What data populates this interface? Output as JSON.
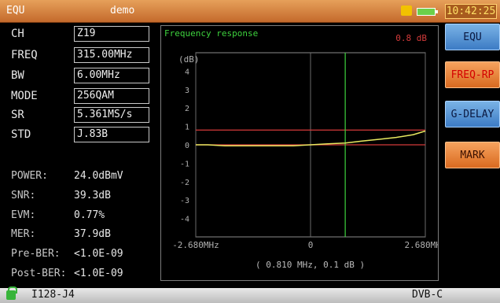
{
  "titlebar": {
    "mode": "EQU",
    "project": "demo",
    "time": "10:42:25",
    "icons": [
      "warning-icon",
      "battery-icon"
    ]
  },
  "params": [
    {
      "label": "CH",
      "value": "Z19"
    },
    {
      "label": "FREQ",
      "value": "315.00MHz"
    },
    {
      "label": "BW",
      "value": "6.00MHz"
    },
    {
      "label": "MODE",
      "value": "256QAM"
    },
    {
      "label": "SR",
      "value": "5.361MS/s"
    },
    {
      "label": "STD",
      "value": "J.83B"
    }
  ],
  "stats": [
    {
      "label": "POWER:",
      "value": "24.0dBmV"
    },
    {
      "label": "SNR:",
      "value": "39.3dB"
    },
    {
      "label": "EVM:",
      "value": "0.77%"
    },
    {
      "label": "MER:",
      "value": "37.9dB"
    },
    {
      "label": "Pre-BER:",
      "value": "<1.0E-09"
    },
    {
      "label": "Post-BER:",
      "value": "<1.0E-09"
    }
  ],
  "graph": {
    "title": "Frequency response",
    "readout": "0.8 dB",
    "cursor_readout": "( 0.810 MHz, 0.1 dB )"
  },
  "chart_data": {
    "type": "line",
    "title": "Frequency response",
    "ylabel": "(dB)",
    "xlabel": "",
    "xlim": [
      -2.68,
      2.68
    ],
    "ylim": [
      -5,
      5
    ],
    "x_ticks": [
      {
        "value": -2.68,
        "label": "-2.680MHz"
      },
      {
        "value": 0,
        "label": "0"
      },
      {
        "value": 2.68,
        "label": "2.680MHz"
      }
    ],
    "y_ticks": [
      4,
      3,
      2,
      1,
      0,
      -1,
      -2,
      -3,
      -4
    ],
    "limit_lines": [
      0.8,
      0
    ],
    "cursor_x": 0.81,
    "series": [
      {
        "x": [
          -2.68,
          -2.4,
          -2.0,
          -1.6,
          -1.2,
          -0.8,
          -0.4,
          0.0,
          0.4,
          0.81,
          1.2,
          1.6,
          2.0,
          2.4,
          2.68
        ],
        "y": [
          0.0,
          0.0,
          -0.05,
          -0.05,
          -0.05,
          -0.05,
          -0.05,
          0.0,
          0.05,
          0.1,
          0.2,
          0.3,
          0.4,
          0.55,
          0.75
        ]
      }
    ]
  },
  "softkeys": [
    {
      "label": "EQU",
      "style": "blue"
    },
    {
      "label": "FREQ-RP",
      "style": "orange",
      "active": true
    },
    {
      "label": "G-DELAY",
      "style": "blue"
    },
    {
      "label": "MARK",
      "style": "orange"
    }
  ],
  "statusbar": {
    "signal": "I128-J4",
    "standard": "DVB-C"
  },
  "colors": {
    "trace": "#e8e860",
    "limit": "#d43a3a",
    "cursor": "#3ed33e",
    "grid": "#6a6a6a",
    "axis_text": "#b0b0b0"
  }
}
